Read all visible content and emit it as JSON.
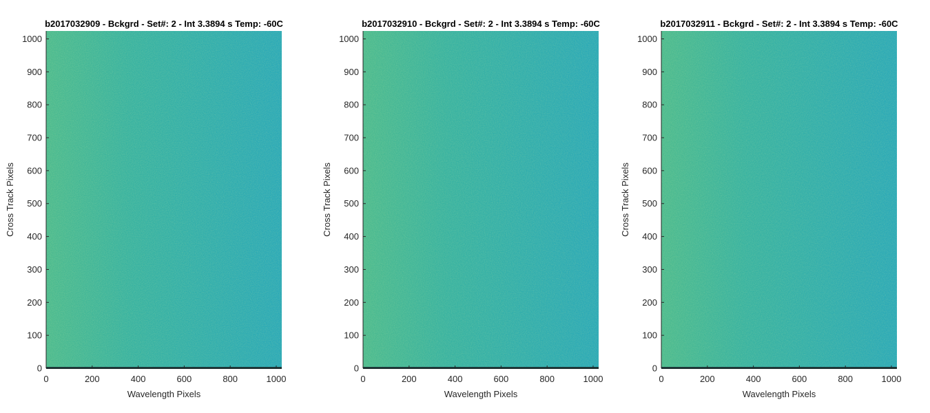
{
  "chart_data": [
    {
      "type": "heatmap",
      "title": "b2017032909 - Bckgrd - Set#: 2 - Int 3.3894 s Temp: -60C",
      "xlabel": "Wavelength Pixels",
      "ylabel": "Cross Track Pixels",
      "xlim": [
        0,
        1024
      ],
      "ylim": [
        0,
        1024
      ],
      "xticks": [
        0,
        200,
        400,
        600,
        800,
        1000
      ],
      "yticks": [
        0,
        100,
        200,
        300,
        400,
        500,
        600,
        700,
        800,
        900,
        1000
      ],
      "colormap": [
        "#2aa2c4",
        "#2db3ad",
        "#5fbf84",
        "#9fca55"
      ],
      "grid": false,
      "values": "noise field, slightly warmer (greener) toward low wavelength pixels"
    },
    {
      "type": "heatmap",
      "title": "b2017032910 - Bckgrd - Set#: 2 - Int 3.3894 s Temp: -60C",
      "xlabel": "Wavelength Pixels",
      "ylabel": "Cross Track Pixels",
      "xlim": [
        0,
        1024
      ],
      "ylim": [
        0,
        1024
      ],
      "xticks": [
        0,
        200,
        400,
        600,
        800,
        1000
      ],
      "yticks": [
        0,
        100,
        200,
        300,
        400,
        500,
        600,
        700,
        800,
        900,
        1000
      ],
      "colormap": [
        "#2aa2c4",
        "#2db3ad",
        "#5fbf84",
        "#9fca55"
      ],
      "grid": false,
      "values": "noise field, slightly warmer (greener) toward low wavelength pixels"
    },
    {
      "type": "heatmap",
      "title": "b2017032911 - Bckgrd - Set#: 2 - Int 3.3894 s Temp: -60C",
      "xlabel": "Wavelength Pixels",
      "ylabel": "Cross Track Pixels",
      "xlim": [
        0,
        1024
      ],
      "ylim": [
        0,
        1024
      ],
      "xticks": [
        0,
        200,
        400,
        600,
        800,
        1000
      ],
      "yticks": [
        0,
        100,
        200,
        300,
        400,
        500,
        600,
        700,
        800,
        900,
        1000
      ],
      "colormap": [
        "#2aa2c4",
        "#2db3ad",
        "#5fbf84",
        "#9fca55"
      ],
      "grid": false,
      "values": "noise field, slightly warmer (greener) toward low wavelength pixels"
    }
  ],
  "colors": {
    "axis": "#262626",
    "bottom_band": "#1a3d3f",
    "base": "#2aa9b8",
    "warm": "#4cbb8f"
  }
}
